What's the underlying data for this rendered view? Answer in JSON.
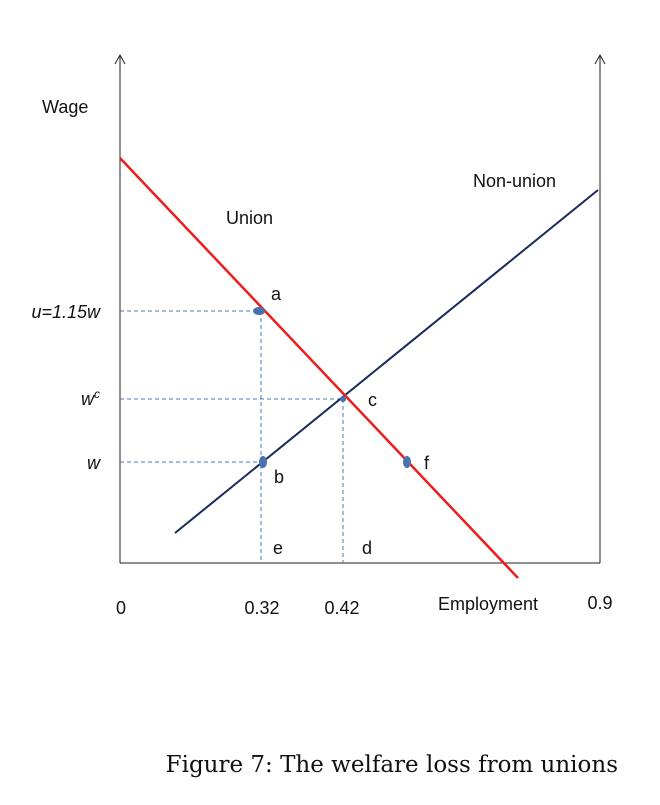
{
  "axes": {
    "y_label": "Wage",
    "x_label": "Employment",
    "x_ticks": [
      "0",
      "0.32",
      "0.42",
      "0.9"
    ]
  },
  "curves": {
    "union": "Union",
    "non_union": "Non-union"
  },
  "wage_levels": {
    "union_wage": "u=1.15w",
    "competitive": {
      "text": "w",
      "sup": "c"
    },
    "wage": "w"
  },
  "points": {
    "a": "a",
    "b": "b",
    "c": "c",
    "d": "d",
    "e": "e",
    "f": "f"
  },
  "caption": "Figure 7: The welfare loss from unions"
}
